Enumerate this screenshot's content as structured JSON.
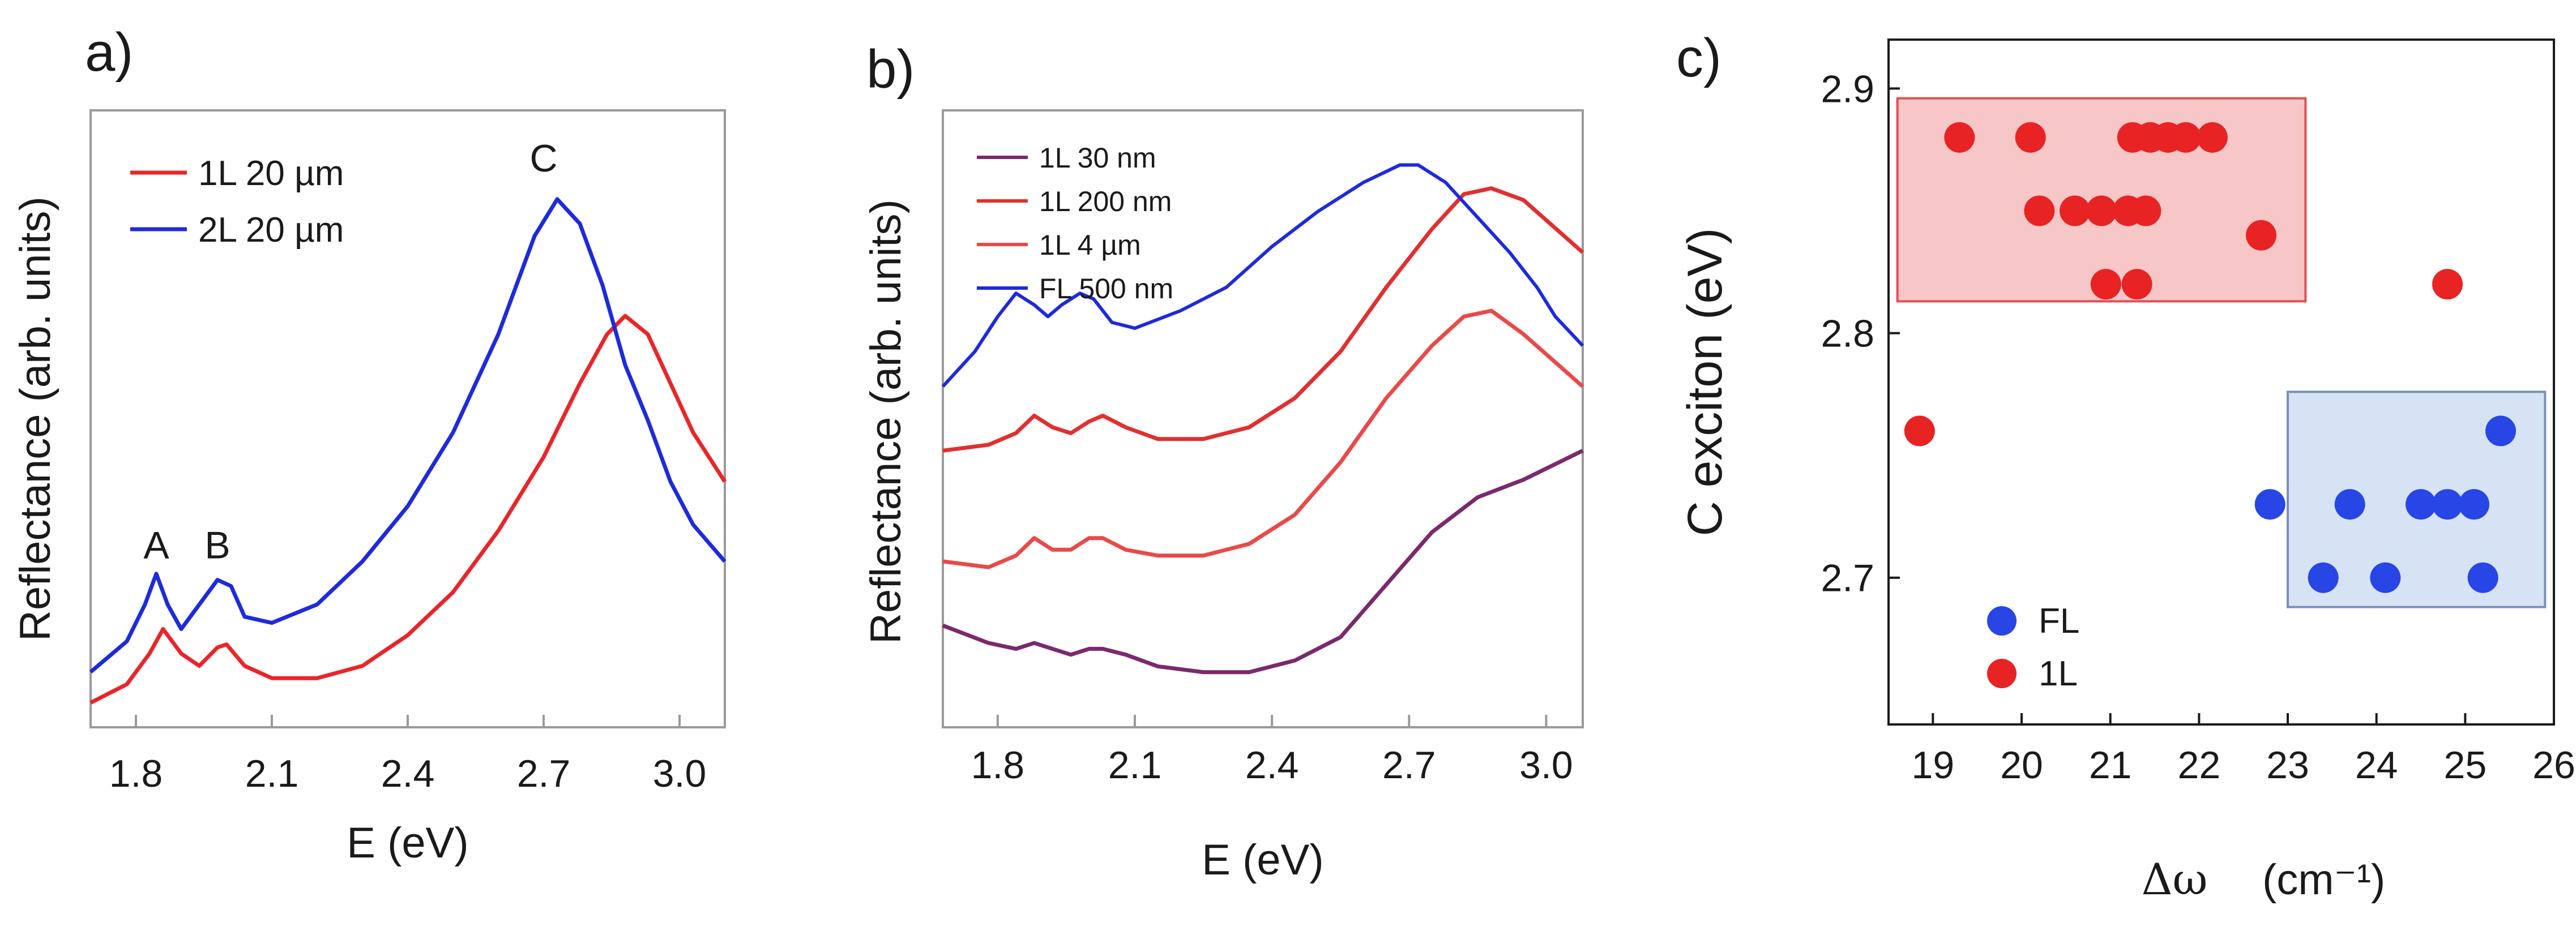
{
  "panels": {
    "a": {
      "label": "a)"
    },
    "b": {
      "label": "b)"
    },
    "c": {
      "label": "c)"
    }
  },
  "chart_data": [
    {
      "id": "a",
      "type": "line",
      "xlabel": "E (eV)",
      "ylabel": "Reflectance (arb. units)",
      "xlim": [
        1.7,
        3.1
      ],
      "ylim": [
        0,
        1
      ],
      "xticks": [
        1.8,
        2.1,
        2.4,
        2.7,
        3.0
      ],
      "xtick_labels": [
        "1.8",
        "2.1",
        "2.4",
        "2.7",
        "3.0"
      ],
      "annotations": [
        {
          "text": "A",
          "x": 1.845,
          "y": 0.275
        },
        {
          "text": "B",
          "x": 1.98,
          "y": 0.275
        },
        {
          "text": "C",
          "x": 2.7,
          "y": 0.905
        }
      ],
      "series": [
        {
          "name": "1L 20 µm",
          "color": "#e8262a",
          "x": [
            1.7,
            1.78,
            1.83,
            1.86,
            1.9,
            1.94,
            1.98,
            2.0,
            2.04,
            2.1,
            2.2,
            2.3,
            2.4,
            2.5,
            2.6,
            2.7,
            2.78,
            2.84,
            2.88,
            2.93,
            2.98,
            3.03,
            3.1
          ],
          "y": [
            0.04,
            0.07,
            0.12,
            0.16,
            0.12,
            0.1,
            0.13,
            0.135,
            0.1,
            0.08,
            0.08,
            0.1,
            0.15,
            0.22,
            0.32,
            0.44,
            0.56,
            0.64,
            0.67,
            0.64,
            0.56,
            0.48,
            0.4
          ]
        },
        {
          "name": "2L 20 µm",
          "color": "#1e2adc",
          "x": [
            1.7,
            1.78,
            1.82,
            1.845,
            1.87,
            1.9,
            1.94,
            1.98,
            2.01,
            2.04,
            2.1,
            2.2,
            2.3,
            2.4,
            2.5,
            2.6,
            2.68,
            2.73,
            2.78,
            2.83,
            2.88,
            2.93,
            2.98,
            3.03,
            3.1
          ],
          "y": [
            0.09,
            0.14,
            0.2,
            0.25,
            0.2,
            0.16,
            0.2,
            0.24,
            0.23,
            0.18,
            0.17,
            0.2,
            0.27,
            0.36,
            0.48,
            0.64,
            0.8,
            0.86,
            0.82,
            0.72,
            0.59,
            0.5,
            0.4,
            0.33,
            0.27
          ]
        }
      ]
    },
    {
      "id": "b",
      "type": "line",
      "xlabel": "E (eV)",
      "ylabel": "Reflectance (arb. units)",
      "xlim": [
        1.68,
        3.08
      ],
      "ylim": [
        0,
        1
      ],
      "xticks": [
        1.8,
        2.1,
        2.4,
        2.7,
        3.0
      ],
      "xtick_labels": [
        "1.8",
        "2.1",
        "2.4",
        "2.7",
        "3.0"
      ],
      "series": [
        {
          "name": "1L 30 nm",
          "color": "#7a2a6e",
          "x": [
            1.68,
            1.78,
            1.84,
            1.88,
            1.92,
            1.96,
            2.0,
            2.03,
            2.08,
            2.15,
            2.25,
            2.35,
            2.45,
            2.55,
            2.65,
            2.75,
            2.85,
            2.95,
            3.08
          ],
          "y": [
            0.16,
            0.13,
            0.12,
            0.13,
            0.12,
            0.11,
            0.12,
            0.12,
            0.11,
            0.09,
            0.08,
            0.08,
            0.1,
            0.14,
            0.23,
            0.32,
            0.38,
            0.41,
            0.46
          ]
        },
        {
          "name": "1L 200 nm",
          "color": "#e03030",
          "x": [
            1.68,
            1.78,
            1.84,
            1.88,
            1.92,
            1.96,
            2.0,
            2.03,
            2.08,
            2.15,
            2.25,
            2.35,
            2.45,
            2.55,
            2.65,
            2.75,
            2.82,
            2.88,
            2.95,
            3.08
          ],
          "y": [
            0.46,
            0.47,
            0.49,
            0.52,
            0.5,
            0.49,
            0.51,
            0.52,
            0.5,
            0.48,
            0.48,
            0.5,
            0.55,
            0.63,
            0.74,
            0.84,
            0.9,
            0.91,
            0.89,
            0.8
          ]
        },
        {
          "name": "1L 4 µm",
          "color": "#e84a4a",
          "x": [
            1.68,
            1.78,
            1.84,
            1.88,
            1.92,
            1.96,
            2.0,
            2.03,
            2.08,
            2.15,
            2.25,
            2.35,
            2.45,
            2.55,
            2.65,
            2.75,
            2.82,
            2.88,
            2.95,
            3.08
          ],
          "y": [
            0.27,
            0.26,
            0.28,
            0.31,
            0.29,
            0.29,
            0.31,
            0.31,
            0.29,
            0.28,
            0.28,
            0.3,
            0.35,
            0.44,
            0.55,
            0.64,
            0.69,
            0.7,
            0.66,
            0.57
          ]
        },
        {
          "name": "FL 500 nm",
          "color": "#1e2adc",
          "x": [
            1.68,
            1.75,
            1.8,
            1.84,
            1.88,
            1.91,
            1.94,
            1.98,
            2.01,
            2.05,
            2.1,
            2.2,
            2.3,
            2.4,
            2.5,
            2.6,
            2.68,
            2.72,
            2.78,
            2.85,
            2.92,
            2.98,
            3.02,
            3.08
          ],
          "y": [
            0.57,
            0.63,
            0.69,
            0.73,
            0.71,
            0.69,
            0.71,
            0.73,
            0.72,
            0.68,
            0.67,
            0.7,
            0.74,
            0.81,
            0.87,
            0.92,
            0.95,
            0.95,
            0.92,
            0.86,
            0.8,
            0.74,
            0.69,
            0.64
          ]
        }
      ]
    },
    {
      "id": "c",
      "type": "scatter",
      "xlabel": "Δω",
      "xlabel_unit": "(cm⁻¹)",
      "ylabel": "C exciton (eV)",
      "xlim": [
        18.5,
        26
      ],
      "ylim": [
        2.64,
        2.92
      ],
      "xticks": [
        19,
        20,
        21,
        22,
        23,
        24,
        25,
        26
      ],
      "xtick_labels": [
        "19",
        "20",
        "21",
        "22",
        "23",
        "24",
        "25",
        "26"
      ],
      "yticks": [
        2.7,
        2.8,
        2.9
      ],
      "ytick_labels": [
        "2.7",
        "2.8",
        "2.9"
      ],
      "regions": [
        {
          "name": "1L region",
          "x": [
            18.6,
            23.2
          ],
          "y": [
            2.813,
            2.896
          ],
          "color": "#f7c6c6",
          "stroke": "#e05050"
        },
        {
          "name": "FL region",
          "x": [
            23.0,
            25.9
          ],
          "y": [
            2.688,
            2.776
          ],
          "color": "#d6e3f5",
          "stroke": "#7a90b8"
        }
      ],
      "series": [
        {
          "name": "FL",
          "color": "#2845e6",
          "x": [
            22.8,
            23.4,
            23.7,
            24.1,
            24.5,
            24.8,
            25.1,
            25.2,
            25.4
          ],
          "y": [
            2.73,
            2.7,
            2.73,
            2.7,
            2.73,
            2.73,
            2.73,
            2.7,
            2.76
          ]
        },
        {
          "name": "1L",
          "color": "#e82323",
          "x": [
            18.85,
            19.3,
            20.1,
            20.2,
            20.6,
            20.9,
            21.2,
            21.4,
            20.95,
            21.3,
            21.25,
            21.45,
            21.65,
            21.85,
            22.15,
            22.7,
            24.8
          ],
          "y": [
            2.76,
            2.88,
            2.88,
            2.85,
            2.85,
            2.85,
            2.85,
            2.85,
            2.82,
            2.82,
            2.88,
            2.88,
            2.88,
            2.88,
            2.88,
            2.84,
            2.82
          ]
        }
      ]
    }
  ]
}
